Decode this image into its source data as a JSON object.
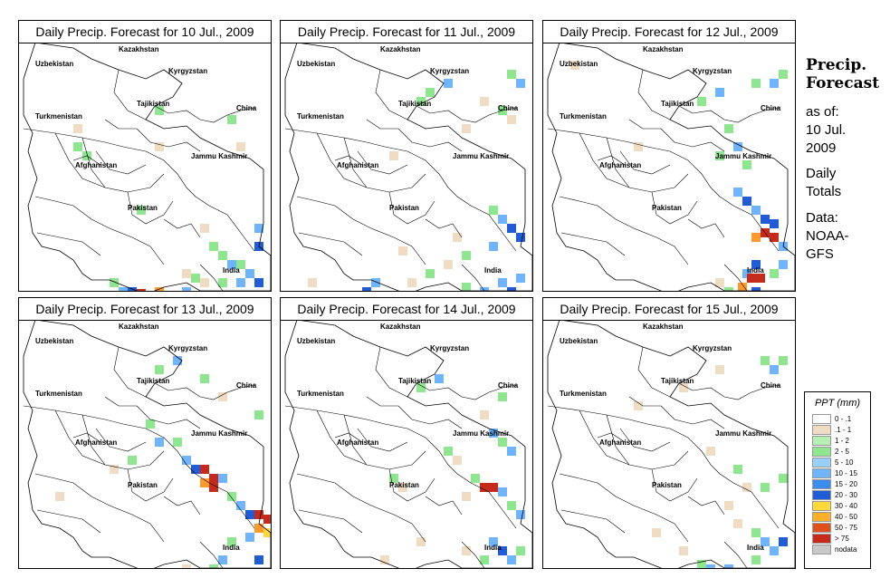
{
  "panels": [
    {
      "title": "Daily Precip. Forecast for  10 Jul., 2009",
      "cells": [
        [
          60,
          90,
          "#f0dcc3"
        ],
        [
          60,
          110,
          "#8ee68e"
        ],
        [
          70,
          120,
          "#8ee68e"
        ],
        [
          150,
          70,
          "#8ee68e"
        ],
        [
          150,
          110,
          "#f0dcc3"
        ],
        [
          230,
          80,
          "#8ee68e"
        ],
        [
          240,
          110,
          "#f0dcc3"
        ],
        [
          200,
          200,
          "#f0dcc3"
        ],
        [
          210,
          220,
          "#8ee68e"
        ],
        [
          220,
          230,
          "#8ee68e"
        ],
        [
          230,
          240,
          "#6fb4ff"
        ],
        [
          240,
          240,
          "#8ee68e"
        ],
        [
          250,
          250,
          "#6fb4ff"
        ],
        [
          260,
          260,
          "#1f5cd6"
        ],
        [
          240,
          260,
          "#6fb4ff"
        ],
        [
          220,
          260,
          "#8ee68e"
        ],
        [
          100,
          260,
          "#8ee68e"
        ],
        [
          110,
          270,
          "#6fb4ff"
        ],
        [
          120,
          270,
          "#1f5cd6"
        ],
        [
          130,
          272,
          "#c62a1a"
        ],
        [
          140,
          275,
          "#c62a1a"
        ],
        [
          150,
          280,
          "#c62a1a"
        ],
        [
          160,
          280,
          "#c62a1a"
        ],
        [
          150,
          270,
          "#ff9a2a"
        ],
        [
          170,
          275,
          "#1f5cd6"
        ],
        [
          180,
          270,
          "#6fb4ff"
        ],
        [
          190,
          255,
          "#8ee68e"
        ],
        [
          200,
          260,
          "#f0dcc3"
        ],
        [
          180,
          250,
          "#f0dcc3"
        ],
        [
          130,
          180,
          "#8ee68e"
        ],
        [
          260,
          200,
          "#6fb4ff"
        ],
        [
          260,
          220,
          "#1f5cd6"
        ]
      ]
    },
    {
      "title": "Daily Precip. Forecast for  11 Jul., 2009",
      "cells": [
        [
          150,
          60,
          "#8ee68e"
        ],
        [
          160,
          50,
          "#8ee68e"
        ],
        [
          180,
          40,
          "#6fb4ff"
        ],
        [
          250,
          30,
          "#8ee68e"
        ],
        [
          260,
          40,
          "#6fb4ff"
        ],
        [
          220,
          60,
          "#f0dcc3"
        ],
        [
          240,
          70,
          "#8ee68e"
        ],
        [
          250,
          80,
          "#f0dcc3"
        ],
        [
          200,
          90,
          "#f0dcc3"
        ],
        [
          120,
          120,
          "#f0dcc3"
        ],
        [
          230,
          180,
          "#8ee68e"
        ],
        [
          240,
          190,
          "#6fb4ff"
        ],
        [
          250,
          200,
          "#1f5cd6"
        ],
        [
          260,
          210,
          "#1f5cd6"
        ],
        [
          230,
          220,
          "#6fb4ff"
        ],
        [
          200,
          230,
          "#8ee68e"
        ],
        [
          180,
          240,
          "#f0dcc3"
        ],
        [
          160,
          250,
          "#8ee68e"
        ],
        [
          140,
          260,
          "#f0dcc3"
        ],
        [
          100,
          260,
          "#6fb4ff"
        ],
        [
          90,
          270,
          "#1f5cd6"
        ],
        [
          110,
          275,
          "#8ee68e"
        ],
        [
          200,
          265,
          "#8ee68e"
        ],
        [
          220,
          270,
          "#6fb4ff"
        ],
        [
          240,
          260,
          "#6fb4ff"
        ],
        [
          250,
          270,
          "#1f5cd6"
        ],
        [
          260,
          255,
          "#6fb4ff"
        ],
        [
          190,
          210,
          "#f0dcc3"
        ],
        [
          130,
          225,
          "#f0dcc3"
        ],
        [
          30,
          260,
          "#f0dcc3"
        ]
      ]
    },
    {
      "title": "Daily Precip. Forecast for  12 Jul., 2009",
      "cells": [
        [
          170,
          60,
          "#8ee68e"
        ],
        [
          190,
          50,
          "#6fb4ff"
        ],
        [
          230,
          40,
          "#8ee68e"
        ],
        [
          250,
          40,
          "#6fb4ff"
        ],
        [
          260,
          30,
          "#8ee68e"
        ],
        [
          200,
          90,
          "#8ee68e"
        ],
        [
          210,
          110,
          "#6fb4ff"
        ],
        [
          220,
          130,
          "#8ee68e"
        ],
        [
          190,
          120,
          "#8ee68e"
        ],
        [
          210,
          160,
          "#6fb4ff"
        ],
        [
          220,
          170,
          "#1f5cd6"
        ],
        [
          230,
          180,
          "#6fb4ff"
        ],
        [
          240,
          190,
          "#1f5cd6"
        ],
        [
          240,
          205,
          "#c62a1a"
        ],
        [
          250,
          210,
          "#c62a1a"
        ],
        [
          230,
          210,
          "#ff9a2a"
        ],
        [
          250,
          195,
          "#1f5cd6"
        ],
        [
          260,
          220,
          "#6fb4ff"
        ],
        [
          230,
          240,
          "#1f5cd6"
        ],
        [
          220,
          250,
          "#6fb4ff"
        ],
        [
          225,
          255,
          "#c62a1a"
        ],
        [
          235,
          255,
          "#c62a1a"
        ],
        [
          215,
          265,
          "#ff9a2a"
        ],
        [
          230,
          270,
          "#1f5cd6"
        ],
        [
          210,
          280,
          "#6fb4ff"
        ],
        [
          200,
          270,
          "#8ee68e"
        ],
        [
          190,
          260,
          "#f0dcc3"
        ],
        [
          250,
          250,
          "#8ee68e"
        ],
        [
          260,
          240,
          "#6fb4ff"
        ],
        [
          100,
          110,
          "#f0dcc3"
        ],
        [
          30,
          20,
          "#f0dcc3"
        ]
      ]
    },
    {
      "title": "Daily Precip. Forecast for  13 Jul., 2009",
      "cells": [
        [
          150,
          50,
          "#8ee68e"
        ],
        [
          170,
          40,
          "#6fb4ff"
        ],
        [
          200,
          60,
          "#8ee68e"
        ],
        [
          220,
          80,
          "#f0dcc3"
        ],
        [
          140,
          110,
          "#8ee68e"
        ],
        [
          150,
          130,
          "#6fb4ff"
        ],
        [
          170,
          130,
          "#8ee68e"
        ],
        [
          180,
          150,
          "#6fb4ff"
        ],
        [
          190,
          160,
          "#1f5cd6"
        ],
        [
          200,
          160,
          "#c62a1a"
        ],
        [
          210,
          170,
          "#c62a1a"
        ],
        [
          210,
          180,
          "#c62a1a"
        ],
        [
          200,
          175,
          "#ff9a2a"
        ],
        [
          220,
          170,
          "#6fb4ff"
        ],
        [
          230,
          190,
          "#8ee68e"
        ],
        [
          240,
          200,
          "#6fb4ff"
        ],
        [
          250,
          210,
          "#1f5cd6"
        ],
        [
          260,
          210,
          "#c62a1a"
        ],
        [
          270,
          215,
          "#c62a1a"
        ],
        [
          260,
          225,
          "#ff9a2a"
        ],
        [
          270,
          230,
          "#ffd93a"
        ],
        [
          250,
          235,
          "#6fb4ff"
        ],
        [
          230,
          240,
          "#8ee68e"
        ],
        [
          220,
          260,
          "#6fb4ff"
        ],
        [
          210,
          270,
          "#8ee68e"
        ],
        [
          260,
          260,
          "#1f5cd6"
        ],
        [
          180,
          270,
          "#f0dcc3"
        ],
        [
          120,
          150,
          "#8ee68e"
        ],
        [
          100,
          160,
          "#f0dcc3"
        ],
        [
          40,
          190,
          "#f0dcc3"
        ],
        [
          260,
          100,
          "#8ee68e"
        ]
      ]
    },
    {
      "title": "Daily Precip. Forecast for  14 Jul., 2009",
      "cells": [
        [
          150,
          70,
          "#8ee68e"
        ],
        [
          170,
          60,
          "#6fb4ff"
        ],
        [
          240,
          80,
          "#8ee68e"
        ],
        [
          220,
          100,
          "#f0dcc3"
        ],
        [
          230,
          120,
          "#6fb4ff"
        ],
        [
          240,
          130,
          "#8ee68e"
        ],
        [
          250,
          140,
          "#6fb4ff"
        ],
        [
          180,
          140,
          "#8ee68e"
        ],
        [
          190,
          150,
          "#f0dcc3"
        ],
        [
          120,
          170,
          "#8ee68e"
        ],
        [
          130,
          180,
          "#f0dcc3"
        ],
        [
          210,
          170,
          "#8ee68e"
        ],
        [
          220,
          180,
          "#c62a1a"
        ],
        [
          230,
          180,
          "#c62a1a"
        ],
        [
          240,
          185,
          "#6fb4ff"
        ],
        [
          200,
          190,
          "#f0dcc3"
        ],
        [
          250,
          200,
          "#8ee68e"
        ],
        [
          260,
          210,
          "#6fb4ff"
        ],
        [
          230,
          240,
          "#6fb4ff"
        ],
        [
          240,
          250,
          "#1f5cd6"
        ],
        [
          250,
          260,
          "#6fb4ff"
        ],
        [
          220,
          260,
          "#8ee68e"
        ],
        [
          200,
          250,
          "#f0dcc3"
        ],
        [
          150,
          240,
          "#f0dcc3"
        ],
        [
          110,
          260,
          "#f0dcc3"
        ],
        [
          260,
          250,
          "#8ee68e"
        ]
      ]
    },
    {
      "title": "Daily Precip. Forecast for  15 Jul., 2009",
      "cells": [
        [
          190,
          50,
          "#f0dcc3"
        ],
        [
          240,
          40,
          "#8ee68e"
        ],
        [
          250,
          50,
          "#6fb4ff"
        ],
        [
          260,
          40,
          "#8ee68e"
        ],
        [
          150,
          70,
          "#f0dcc3"
        ],
        [
          180,
          140,
          "#f0dcc3"
        ],
        [
          210,
          160,
          "#8ee68e"
        ],
        [
          220,
          180,
          "#f0dcc3"
        ],
        [
          240,
          180,
          "#8ee68e"
        ],
        [
          200,
          200,
          "#f0dcc3"
        ],
        [
          230,
          230,
          "#8ee68e"
        ],
        [
          240,
          240,
          "#6fb4ff"
        ],
        [
          250,
          250,
          "#6fb4ff"
        ],
        [
          260,
          240,
          "#1f5cd6"
        ],
        [
          230,
          260,
          "#8ee68e"
        ],
        [
          170,
          265,
          "#8ee68e"
        ],
        [
          180,
          270,
          "#6fb4ff"
        ],
        [
          170,
          275,
          "#1f5cd6"
        ],
        [
          180,
          280,
          "#c62a1a"
        ],
        [
          190,
          275,
          "#ff9a2a"
        ],
        [
          200,
          270,
          "#6fb4ff"
        ],
        [
          150,
          250,
          "#f0dcc3"
        ],
        [
          120,
          230,
          "#f0dcc3"
        ],
        [
          210,
          220,
          "#f0dcc3"
        ],
        [
          100,
          90,
          "#f0dcc3"
        ],
        [
          260,
          170,
          "#8ee68e"
        ]
      ]
    }
  ],
  "map_labels": {
    "kazakhstan": "Kazakhstan",
    "uzbekistan": "Uzbekistan",
    "kyrgyzstan": "Kyrgyzstan",
    "tajikistan": "Tajikistan",
    "turkmenistan": "Turkmenistan",
    "china": "China",
    "afghanistan": "Afghanistan",
    "jammu_kashmir": "Jammu Kashmir",
    "pakistan": "Pakistan",
    "india": "India"
  },
  "sidebar": {
    "heading1": "Precip.",
    "heading2": "Forecast",
    "asof1": "as of:",
    "asof2": "10 Jul.",
    "asof3": "2009",
    "daily1": "Daily",
    "daily2": "Totals",
    "data1": "Data:",
    "data2": "NOAA-",
    "data3": "GFS"
  },
  "legend": {
    "title": "PPT (mm)",
    "items": [
      {
        "label": "0 - .1",
        "color": "#ffffff"
      },
      {
        "label": ".1 - 1",
        "color": "#f0dcc3"
      },
      {
        "label": "1 - 2",
        "color": "#b4f0b4"
      },
      {
        "label": "2 - 5",
        "color": "#8ee68e"
      },
      {
        "label": "5 - 10",
        "color": "#9ad0ff"
      },
      {
        "label": "10 - 15",
        "color": "#6fb4ff"
      },
      {
        "label": "15 - 20",
        "color": "#3c8cf0"
      },
      {
        "label": "20 - 30",
        "color": "#1f5cd6"
      },
      {
        "label": "30 - 40",
        "color": "#ffd93a"
      },
      {
        "label": "40 - 50",
        "color": "#ffb02a"
      },
      {
        "label": "50 - 75",
        "color": "#e0501a"
      },
      {
        "label": "> 75",
        "color": "#c62a1a"
      },
      {
        "label": "nodata",
        "color": "#c8c8c8"
      }
    ]
  }
}
